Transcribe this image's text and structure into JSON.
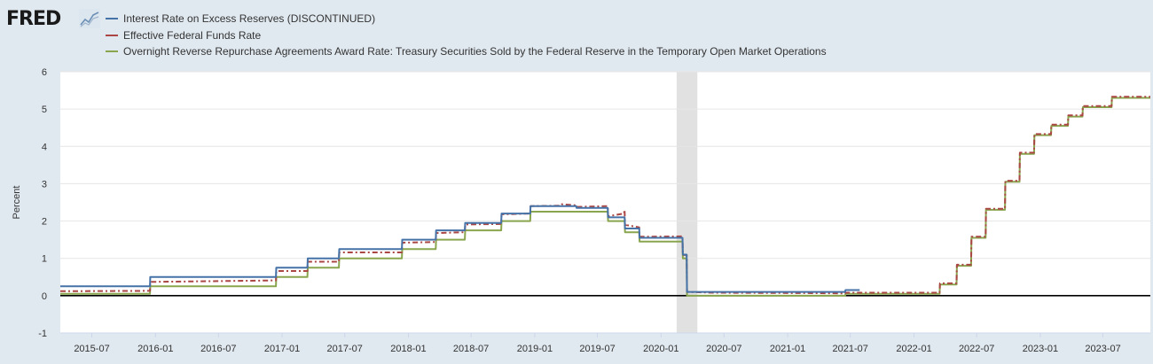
{
  "brand": {
    "logo_text": "FRED",
    "logo_icon": "chart-line-icon"
  },
  "chart_data": {
    "type": "line",
    "title": "",
    "xlabel": "",
    "ylabel": "Percent",
    "ylim": [
      -1,
      6
    ],
    "yticks": [
      6,
      5,
      4,
      3,
      2,
      1,
      0,
      -1
    ],
    "xlim": [
      "2015-04-01",
      "2023-11-15"
    ],
    "xticks": [
      "2015-07",
      "2016-01",
      "2016-07",
      "2017-01",
      "2017-07",
      "2018-01",
      "2018-07",
      "2019-01",
      "2019-07",
      "2020-01",
      "2020-07",
      "2021-01",
      "2021-07",
      "2022-01",
      "2022-07",
      "2023-01",
      "2023-07"
    ],
    "grid": true,
    "legend_position": "top-left",
    "recession": {
      "start": "2020-02-15",
      "end": "2020-04-15",
      "color": "#e1e1e1"
    },
    "series": [
      {
        "name": "Interest Rate on Excess Reserves (DISCONTINUED)",
        "color": "#4572a7",
        "dash": "",
        "points": [
          [
            "2015-04-01",
            0.25
          ],
          [
            "2015-12-16",
            0.25
          ],
          [
            "2015-12-17",
            0.5
          ],
          [
            "2016-12-14",
            0.5
          ],
          [
            "2016-12-15",
            0.75
          ],
          [
            "2017-03-15",
            0.75
          ],
          [
            "2017-03-16",
            1.0
          ],
          [
            "2017-06-14",
            1.0
          ],
          [
            "2017-06-15",
            1.25
          ],
          [
            "2017-12-13",
            1.25
          ],
          [
            "2017-12-14",
            1.5
          ],
          [
            "2018-03-21",
            1.5
          ],
          [
            "2018-03-22",
            1.75
          ],
          [
            "2018-06-13",
            1.75
          ],
          [
            "2018-06-14",
            1.95
          ],
          [
            "2018-09-26",
            1.95
          ],
          [
            "2018-09-27",
            2.2
          ],
          [
            "2018-12-19",
            2.2
          ],
          [
            "2018-12-20",
            2.4
          ],
          [
            "2019-05-01",
            2.4
          ],
          [
            "2019-05-02",
            2.35
          ],
          [
            "2019-07-31",
            2.35
          ],
          [
            "2019-08-01",
            2.1
          ],
          [
            "2019-09-18",
            2.1
          ],
          [
            "2019-09-19",
            1.8
          ],
          [
            "2019-10-30",
            1.8
          ],
          [
            "2019-10-31",
            1.55
          ],
          [
            "2020-03-03",
            1.55
          ],
          [
            "2020-03-04",
            1.1
          ],
          [
            "2020-03-15",
            1.1
          ],
          [
            "2020-03-16",
            0.1
          ],
          [
            "2021-06-16",
            0.1
          ],
          [
            "2021-06-17",
            0.15
          ],
          [
            "2021-07-28",
            0.15
          ]
        ]
      },
      {
        "name": "Effective Federal Funds Rate",
        "color": "#aa4643",
        "dash": "6,3,2,3",
        "points": [
          [
            "2015-04-01",
            0.12
          ],
          [
            "2015-12-16",
            0.13
          ],
          [
            "2015-12-17",
            0.37
          ],
          [
            "2016-12-14",
            0.41
          ],
          [
            "2016-12-15",
            0.66
          ],
          [
            "2017-03-15",
            0.66
          ],
          [
            "2017-03-16",
            0.91
          ],
          [
            "2017-06-14",
            0.91
          ],
          [
            "2017-06-15",
            1.16
          ],
          [
            "2017-12-13",
            1.16
          ],
          [
            "2017-12-14",
            1.42
          ],
          [
            "2018-03-21",
            1.44
          ],
          [
            "2018-03-22",
            1.68
          ],
          [
            "2018-06-13",
            1.7
          ],
          [
            "2018-06-14",
            1.91
          ],
          [
            "2018-09-26",
            1.92
          ],
          [
            "2018-09-27",
            2.18
          ],
          [
            "2018-12-19",
            2.2
          ],
          [
            "2018-12-20",
            2.4
          ],
          [
            "2019-03-15",
            2.41
          ],
          [
            "2019-03-20",
            2.45
          ],
          [
            "2019-05-01",
            2.42
          ],
          [
            "2019-05-02",
            2.38
          ],
          [
            "2019-07-31",
            2.4
          ],
          [
            "2019-08-01",
            2.13
          ],
          [
            "2019-09-16",
            2.2
          ],
          [
            "2019-09-17",
            2.3
          ],
          [
            "2019-09-18",
            2.25
          ],
          [
            "2019-09-19",
            1.9
          ],
          [
            "2019-10-30",
            1.83
          ],
          [
            "2019-10-31",
            1.58
          ],
          [
            "2020-03-03",
            1.59
          ],
          [
            "2020-03-04",
            1.09
          ],
          [
            "2020-03-15",
            1.09
          ],
          [
            "2020-03-16",
            0.1
          ],
          [
            "2020-06-01",
            0.08
          ],
          [
            "2021-03-01",
            0.07
          ],
          [
            "2021-06-16",
            0.06
          ],
          [
            "2021-06-17",
            0.08
          ],
          [
            "2022-03-16",
            0.08
          ],
          [
            "2022-03-17",
            0.33
          ],
          [
            "2022-05-04",
            0.33
          ],
          [
            "2022-05-05",
            0.83
          ],
          [
            "2022-06-15",
            0.83
          ],
          [
            "2022-06-16",
            1.58
          ],
          [
            "2022-07-27",
            1.58
          ],
          [
            "2022-07-28",
            2.33
          ],
          [
            "2022-09-21",
            2.33
          ],
          [
            "2022-09-22",
            3.08
          ],
          [
            "2022-11-02",
            3.08
          ],
          [
            "2022-11-03",
            3.83
          ],
          [
            "2022-12-14",
            3.83
          ],
          [
            "2022-12-15",
            4.33
          ],
          [
            "2023-02-01",
            4.33
          ],
          [
            "2023-02-02",
            4.58
          ],
          [
            "2023-03-22",
            4.58
          ],
          [
            "2023-03-23",
            4.83
          ],
          [
            "2023-05-03",
            4.83
          ],
          [
            "2023-05-04",
            5.08
          ],
          [
            "2023-07-26",
            5.08
          ],
          [
            "2023-07-27",
            5.33
          ],
          [
            "2023-11-15",
            5.33
          ]
        ]
      },
      {
        "name": "Overnight Reverse Repurchase Agreements Award Rate: Treasury Securities Sold by the Federal Reserve in the Temporary Open Market Operations",
        "color": "#89a54e",
        "dash": "",
        "points": [
          [
            "2015-04-01",
            0.05
          ],
          [
            "2015-12-16",
            0.05
          ],
          [
            "2015-12-17",
            0.25
          ],
          [
            "2016-12-14",
            0.25
          ],
          [
            "2016-12-15",
            0.5
          ],
          [
            "2017-03-15",
            0.5
          ],
          [
            "2017-03-16",
            0.75
          ],
          [
            "2017-06-14",
            0.75
          ],
          [
            "2017-06-15",
            1.0
          ],
          [
            "2017-12-13",
            1.0
          ],
          [
            "2017-12-14",
            1.25
          ],
          [
            "2018-03-21",
            1.25
          ],
          [
            "2018-03-22",
            1.5
          ],
          [
            "2018-06-13",
            1.5
          ],
          [
            "2018-06-14",
            1.75
          ],
          [
            "2018-09-26",
            1.75
          ],
          [
            "2018-09-27",
            2.0
          ],
          [
            "2018-12-19",
            2.0
          ],
          [
            "2018-12-20",
            2.25
          ],
          [
            "2019-07-31",
            2.25
          ],
          [
            "2019-08-01",
            2.0
          ],
          [
            "2019-09-18",
            2.0
          ],
          [
            "2019-09-19",
            1.7
          ],
          [
            "2019-10-30",
            1.7
          ],
          [
            "2019-10-31",
            1.45
          ],
          [
            "2020-03-03",
            1.45
          ],
          [
            "2020-03-04",
            1.0
          ],
          [
            "2020-03-15",
            1.0
          ],
          [
            "2020-03-16",
            0.0
          ],
          [
            "2021-06-16",
            0.0
          ],
          [
            "2021-06-17",
            0.05
          ],
          [
            "2022-03-16",
            0.05
          ],
          [
            "2022-03-17",
            0.3
          ],
          [
            "2022-05-04",
            0.3
          ],
          [
            "2022-05-05",
            0.8
          ],
          [
            "2022-06-15",
            0.8
          ],
          [
            "2022-06-16",
            1.55
          ],
          [
            "2022-07-27",
            1.55
          ],
          [
            "2022-07-28",
            2.3
          ],
          [
            "2022-09-21",
            2.3
          ],
          [
            "2022-09-22",
            3.05
          ],
          [
            "2022-11-02",
            3.05
          ],
          [
            "2022-11-03",
            3.8
          ],
          [
            "2022-12-14",
            3.8
          ],
          [
            "2022-12-15",
            4.3
          ],
          [
            "2023-02-01",
            4.3
          ],
          [
            "2023-02-02",
            4.55
          ],
          [
            "2023-03-22",
            4.55
          ],
          [
            "2023-03-23",
            4.8
          ],
          [
            "2023-05-03",
            4.8
          ],
          [
            "2023-05-04",
            5.05
          ],
          [
            "2023-07-26",
            5.05
          ],
          [
            "2023-07-27",
            5.3
          ],
          [
            "2023-11-15",
            5.3
          ]
        ]
      }
    ]
  }
}
